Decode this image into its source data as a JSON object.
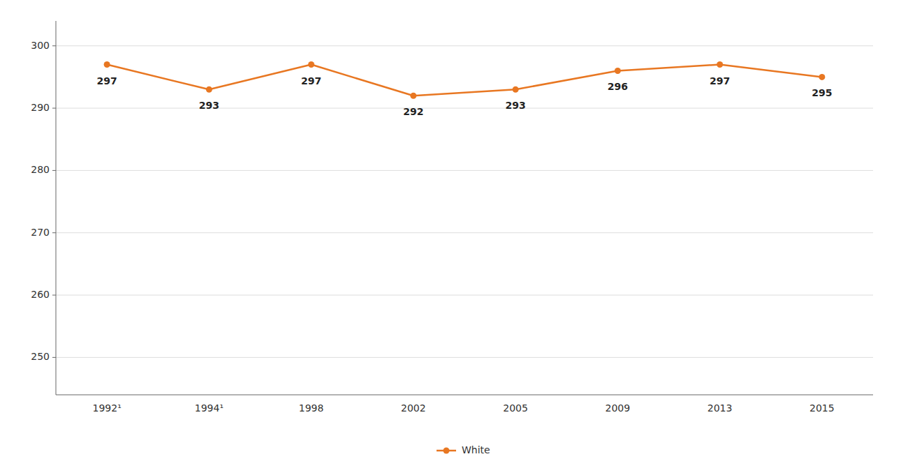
{
  "chart_data": {
    "type": "line",
    "categories": [
      "1992¹",
      "1994¹",
      "1998",
      "2002",
      "2005",
      "2009",
      "2013",
      "2015"
    ],
    "series": [
      {
        "name": "White",
        "color": "#E87722",
        "values": [
          297,
          293,
          297,
          292,
          293,
          296,
          297,
          295
        ],
        "marker": "circle"
      }
    ],
    "ylim": [
      244,
      304
    ],
    "yticks": [
      250,
      260,
      270,
      280,
      290,
      300
    ],
    "grid": true,
    "data_labels": true,
    "legend": "bottom"
  }
}
